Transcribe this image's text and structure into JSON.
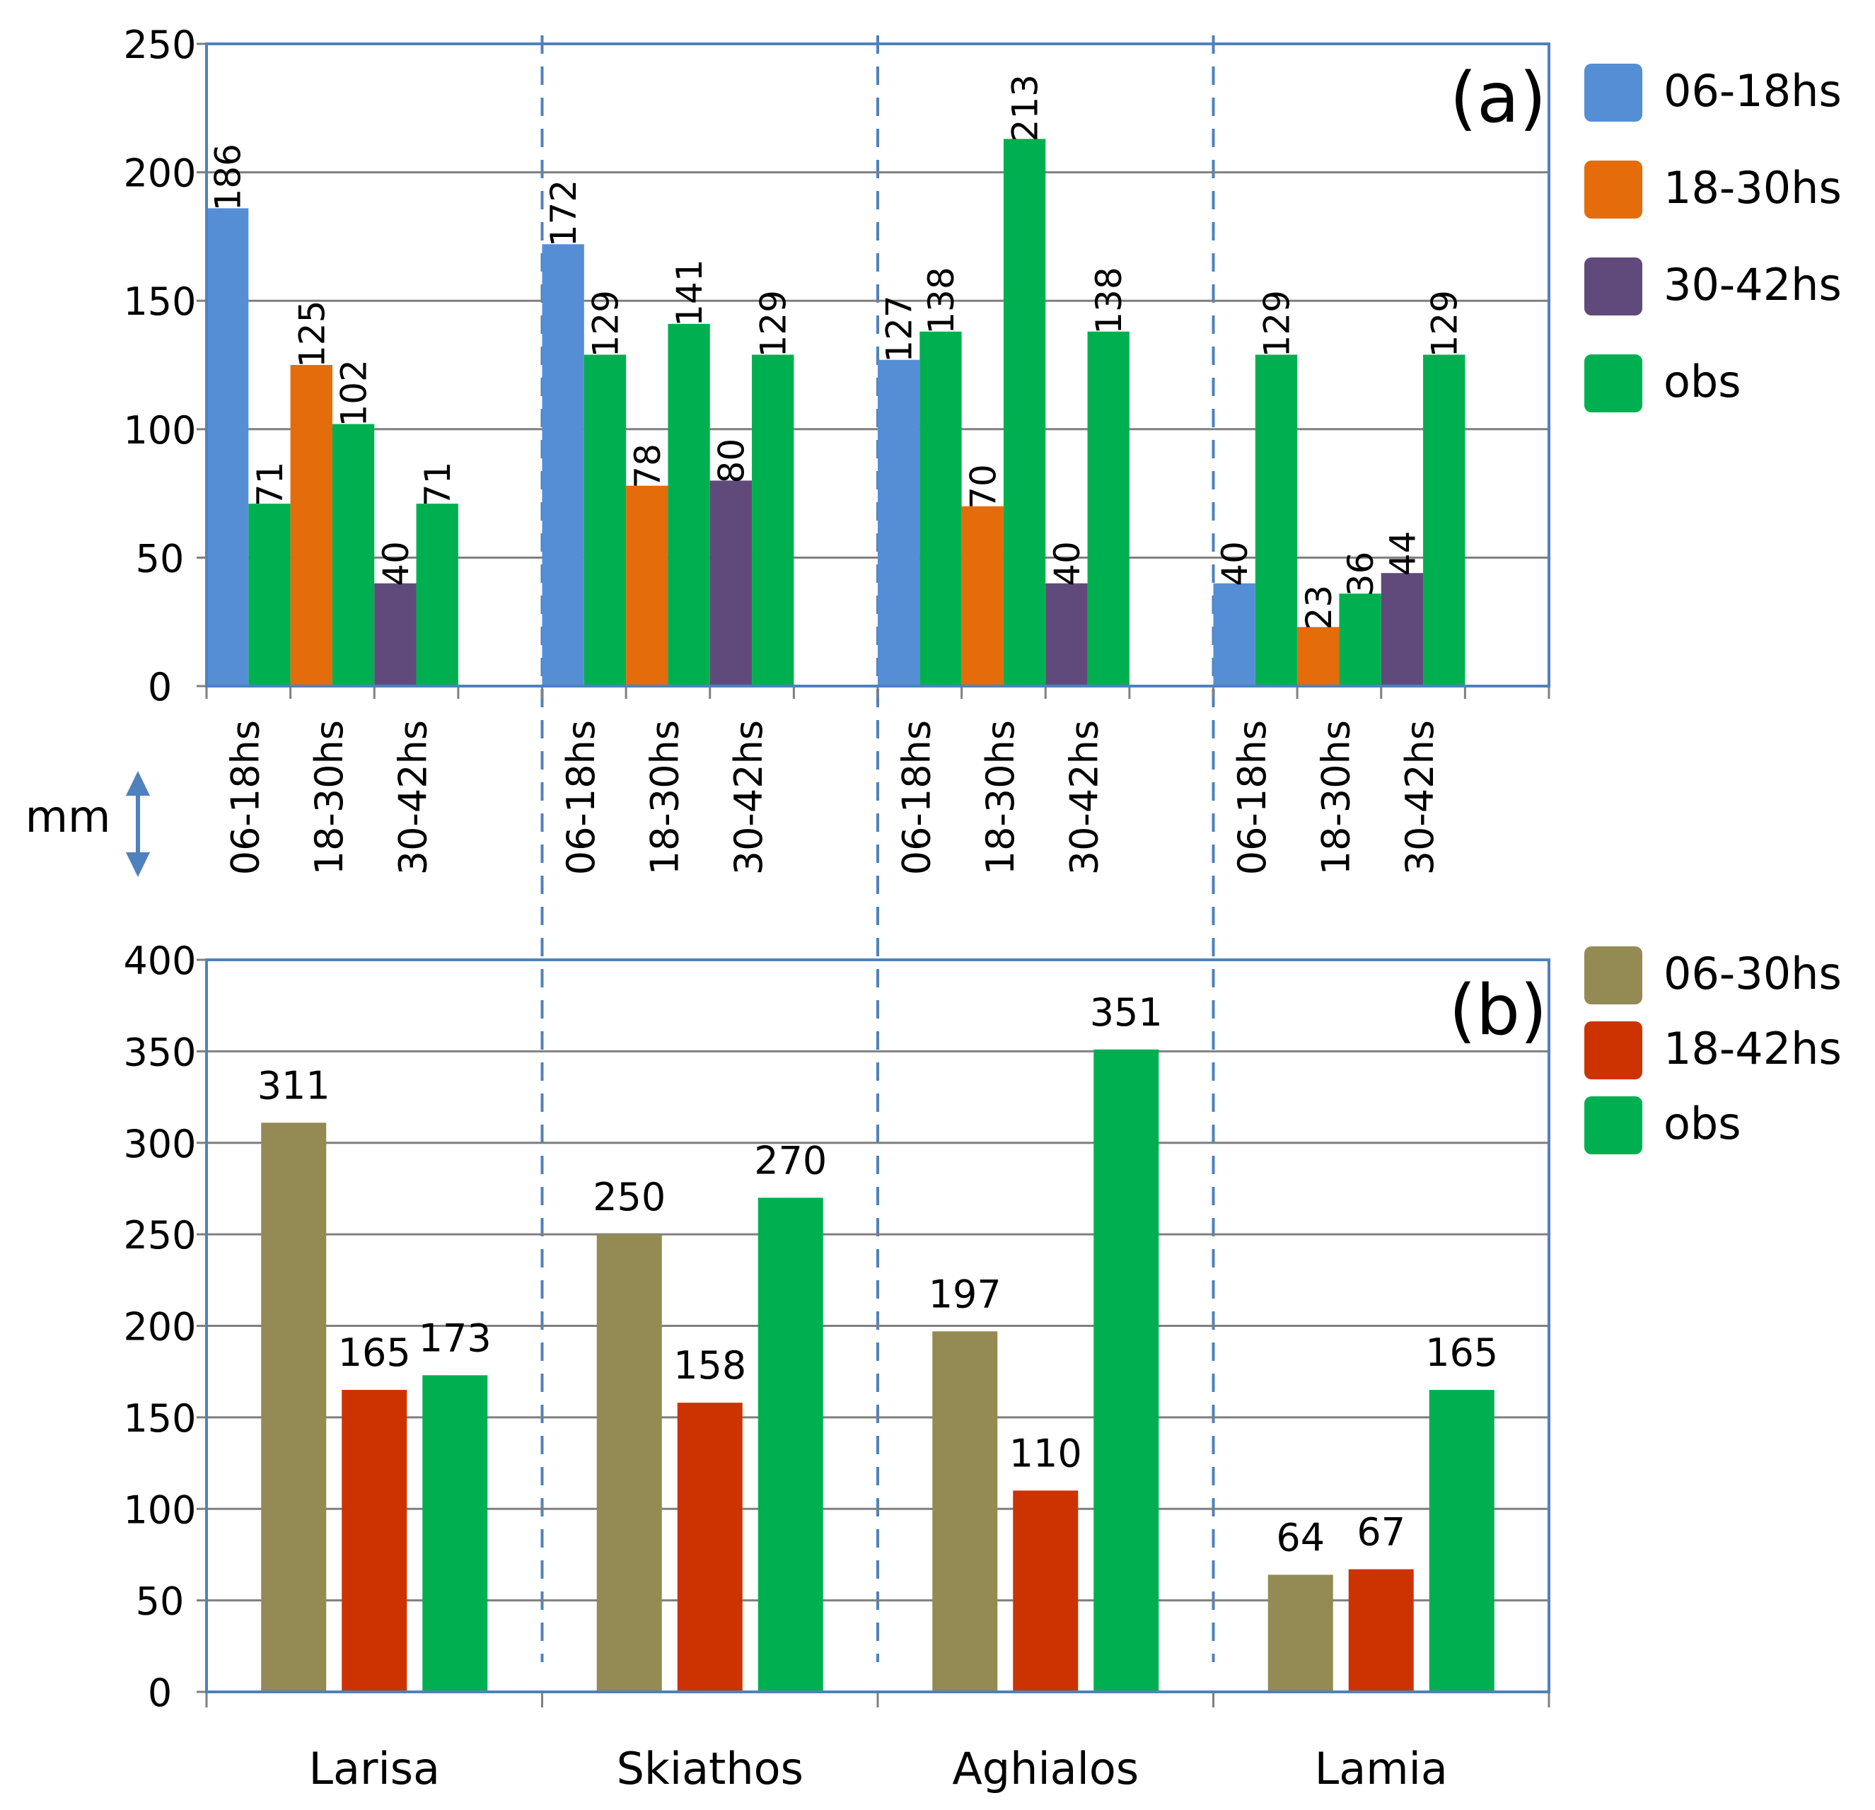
{
  "colors": {
    "c0618": "#558ed5",
    "c1830": "#e46c0a",
    "c3042": "#604a7b",
    "obs": "#00b050",
    "c0630": "#948a54",
    "c1842": "#cc3300",
    "grid": "#7f7f7f",
    "frame": "#4f81bd",
    "divider": "#4f81bd"
  },
  "shared": {
    "unit_label": "mm",
    "stations": [
      "Larisa",
      "Skiathos",
      "Aghialos",
      "Lamia"
    ]
  },
  "chart_data": [
    {
      "type": "bar",
      "panel": "(a)",
      "ylim": [
        0,
        250
      ],
      "yticks": [
        0,
        50,
        100,
        150,
        200,
        250
      ],
      "categories": [
        "06-18hs",
        "18-30hs",
        "30-42hs"
      ],
      "legend": [
        {
          "label": "06-18hs",
          "color": "#558ed5"
        },
        {
          "label": "18-30hs",
          "color": "#e46c0a"
        },
        {
          "label": "30-42hs",
          "color": "#604a7b"
        },
        {
          "label": "obs",
          "color": "#00b050"
        }
      ],
      "groups": [
        {
          "station": "Larisa",
          "bars": [
            {
              "x": 0,
              "value": 186,
              "color": "#558ed5"
            },
            {
              "x": 1,
              "value": 71,
              "color": "#00b050"
            },
            {
              "x": 2,
              "value": 125,
              "color": "#e46c0a"
            },
            {
              "x": 3,
              "value": 102,
              "color": "#00b050"
            },
            {
              "x": 4,
              "value": 40,
              "color": "#604a7b"
            },
            {
              "x": 5,
              "value": 71,
              "color": "#00b050"
            }
          ]
        },
        {
          "station": "Skiathos",
          "bars": [
            {
              "x": 0,
              "value": 172,
              "color": "#558ed5"
            },
            {
              "x": 1,
              "value": 129,
              "color": "#00b050"
            },
            {
              "x": 2,
              "value": 78,
              "color": "#e46c0a"
            },
            {
              "x": 3,
              "value": 141,
              "color": "#00b050"
            },
            {
              "x": 4,
              "value": 80,
              "color": "#604a7b"
            },
            {
              "x": 5,
              "value": 129,
              "color": "#00b050"
            }
          ]
        },
        {
          "station": "Aghialos",
          "bars": [
            {
              "x": 0,
              "value": 127,
              "color": "#558ed5"
            },
            {
              "x": 1,
              "value": 138,
              "color": "#00b050"
            },
            {
              "x": 2,
              "value": 70,
              "color": "#e46c0a"
            },
            {
              "x": 3,
              "value": 213,
              "color": "#00b050"
            },
            {
              "x": 4,
              "value": 40,
              "color": "#604a7b"
            },
            {
              "x": 5,
              "value": 138,
              "color": "#00b050"
            }
          ]
        },
        {
          "station": "Lamia",
          "bars": [
            {
              "x": 0,
              "value": 40,
              "color": "#558ed5"
            },
            {
              "x": 1,
              "value": 129,
              "color": "#00b050"
            },
            {
              "x": 2,
              "value": 23,
              "color": "#e46c0a"
            },
            {
              "x": 3,
              "value": 36,
              "color": "#00b050"
            },
            {
              "x": 4,
              "value": 44,
              "color": "#604a7b"
            },
            {
              "x": 5,
              "value": 129,
              "color": "#00b050"
            }
          ]
        }
      ]
    },
    {
      "type": "bar",
      "panel": "(b)",
      "ylim": [
        0,
        400
      ],
      "yticks": [
        0,
        50,
        100,
        150,
        200,
        250,
        300,
        350,
        400
      ],
      "categories": [
        "Larisa",
        "Skiathos",
        "Aghialos",
        "Lamia"
      ],
      "legend": [
        {
          "label": "06-30hs",
          "color": "#948a54"
        },
        {
          "label": "18-42hs",
          "color": "#cc3300"
        },
        {
          "label": "obs",
          "color": "#00b050"
        }
      ],
      "series": [
        {
          "name": "06-30hs",
          "color": "#948a54",
          "values": [
            311,
            250,
            197,
            64
          ]
        },
        {
          "name": "18-42hs",
          "color": "#cc3300",
          "values": [
            165,
            158,
            110,
            67
          ]
        },
        {
          "name": "obs",
          "color": "#00b050",
          "values": [
            173,
            270,
            351,
            165
          ]
        }
      ]
    }
  ]
}
